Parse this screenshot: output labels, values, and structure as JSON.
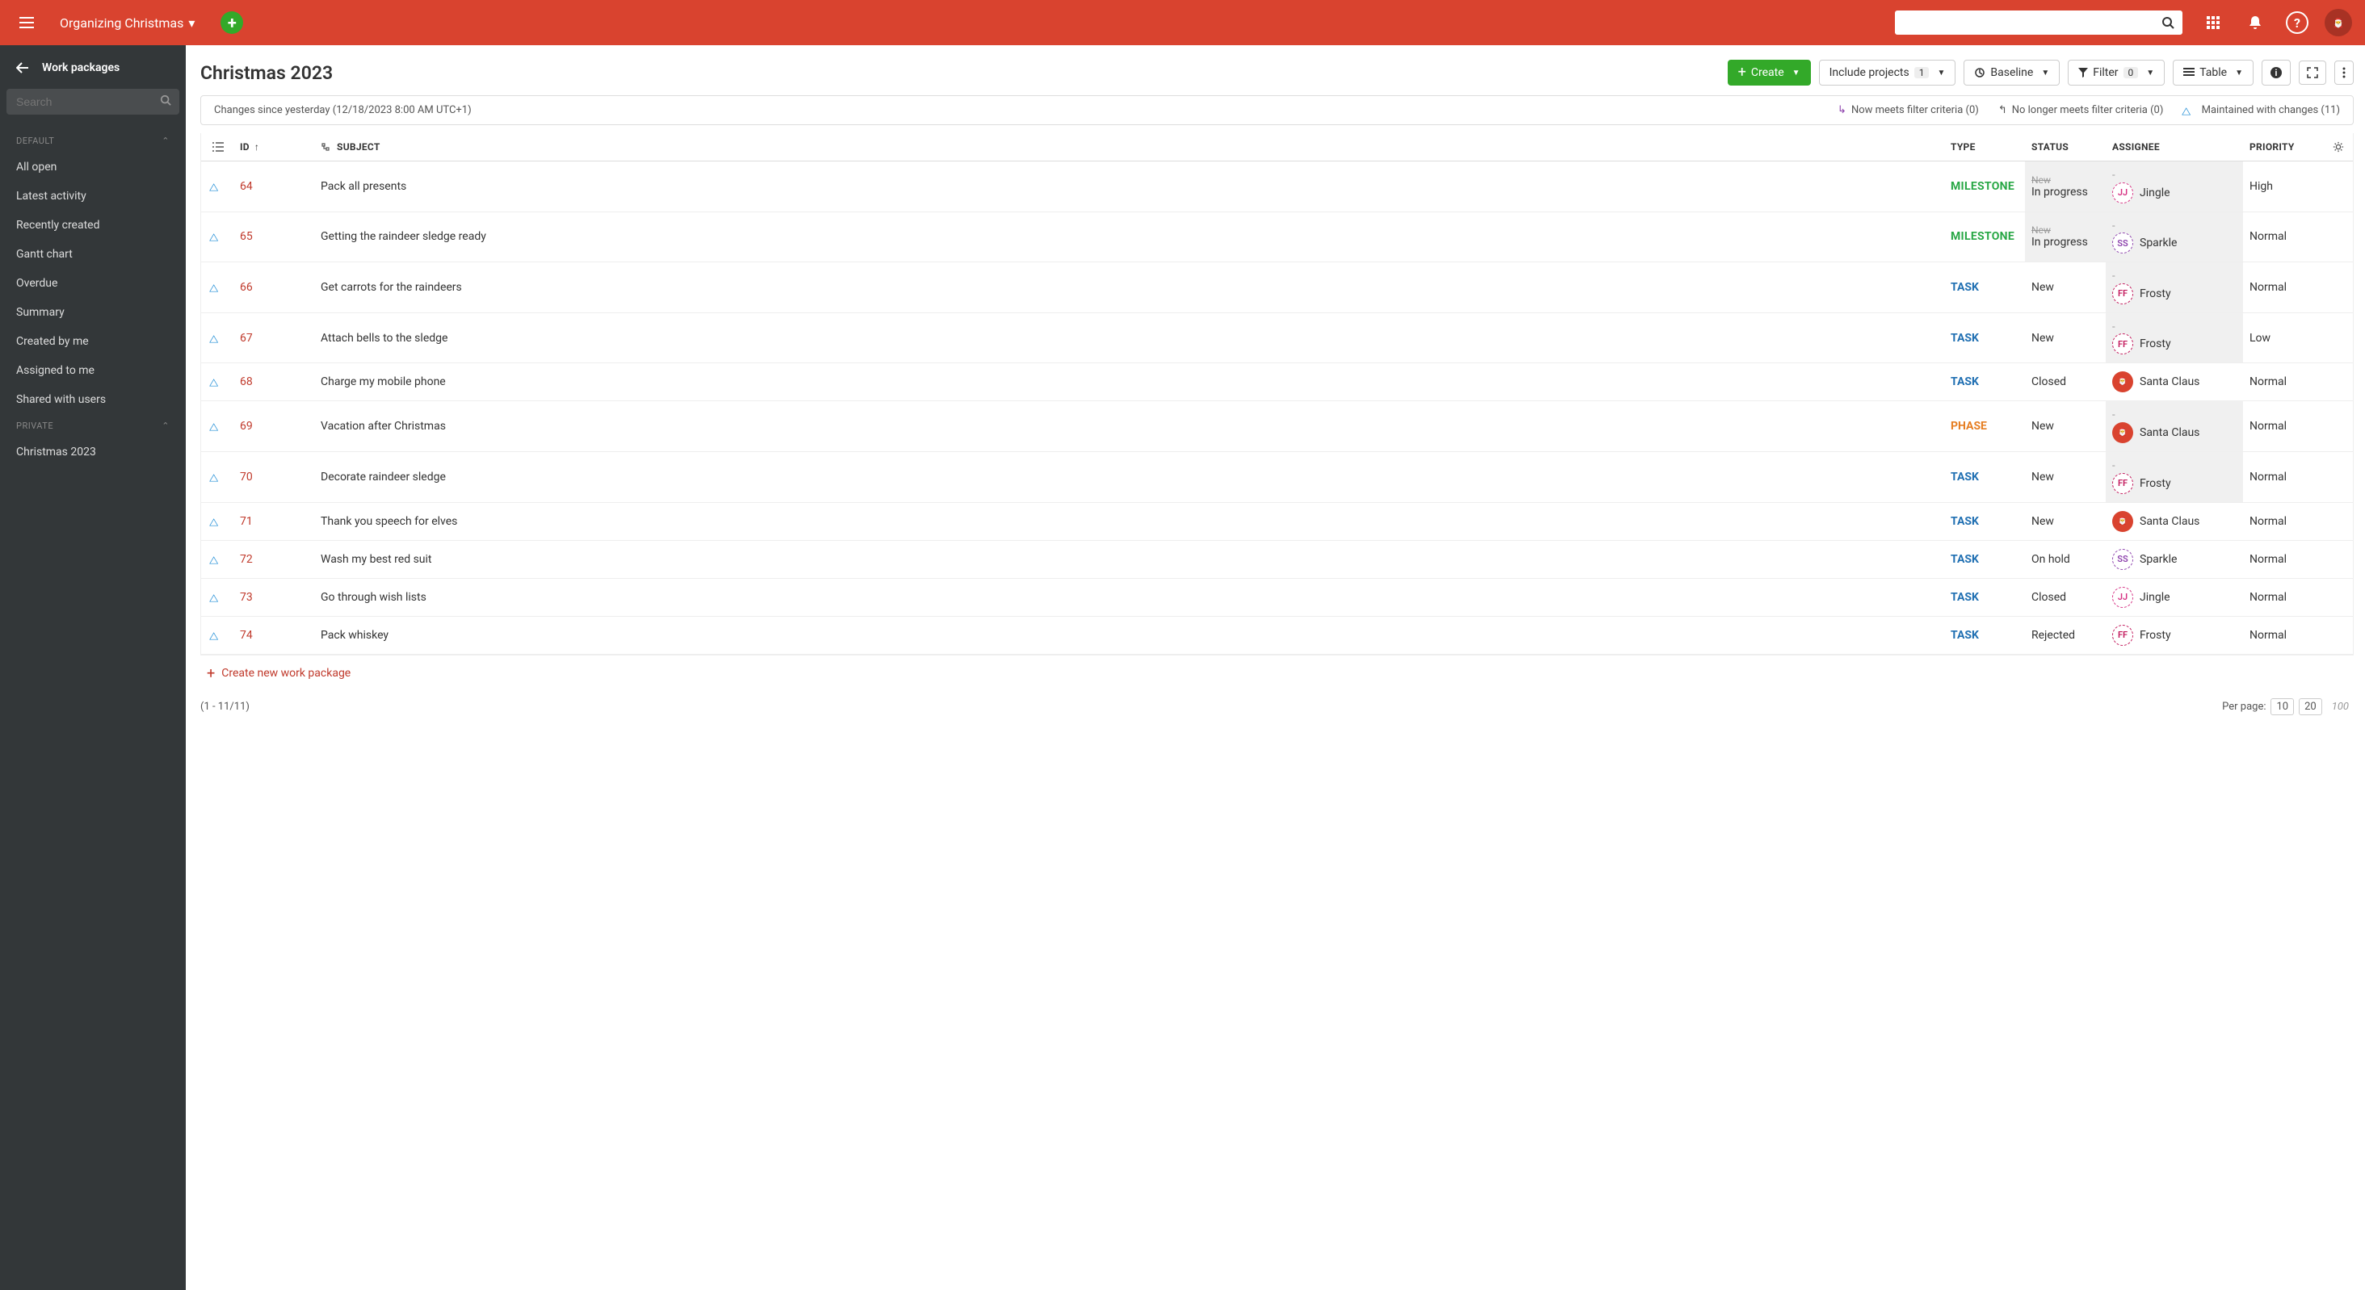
{
  "topbar": {
    "project_name": "Organizing Christmas",
    "search_placeholder": "",
    "avatar_initials": "🎅"
  },
  "sidebar": {
    "back_label": "Work packages",
    "search_placeholder": "Search",
    "groups": [
      {
        "label": "DEFAULT",
        "items": [
          "All open",
          "Latest activity",
          "Recently created",
          "Gantt chart",
          "Overdue",
          "Summary",
          "Created by me",
          "Assigned to me",
          "Shared with users"
        ]
      },
      {
        "label": "PRIVATE",
        "items": [
          "Christmas 2023"
        ]
      }
    ]
  },
  "toolbar": {
    "title": "Christmas 2023",
    "create_label": "Create",
    "include_projects_label": "Include projects",
    "include_projects_count": "1",
    "baseline_label": "Baseline",
    "filter_label": "Filter",
    "filter_count": "0",
    "table_label": "Table"
  },
  "changes_bar": {
    "since_label": "Changes since yesterday (12/18/2023 8:00 AM UTC+1)",
    "now_meets": "Now meets filter criteria (0)",
    "no_longer": "No longer meets filter criteria (0)",
    "maintained": "Maintained with changes (11)"
  },
  "columns": {
    "id": "ID",
    "subject": "SUBJECT",
    "type": "TYPE",
    "status": "STATUS",
    "assignee": "ASSIGNEE",
    "priority": "PRIORITY"
  },
  "rows": [
    {
      "id": "64",
      "subject": "Pack all presents",
      "type": "MILESTONE",
      "type_class": "type-milestone",
      "status_old": "New",
      "status": "In progress",
      "assignee_old": "-",
      "assignee": "Jingle",
      "av_class": "av-dashed av-jj",
      "av_txt": "JJ",
      "priority": "High",
      "hl_status": true,
      "hl_assignee": true
    },
    {
      "id": "65",
      "subject": "Getting the raindeer sledge ready",
      "type": "MILESTONE",
      "type_class": "type-milestone",
      "status_old": "New",
      "status": "In progress",
      "assignee_old": "-",
      "assignee": "Sparkle",
      "av_class": "av-dashed av-ss",
      "av_txt": "SS",
      "priority": "Normal",
      "hl_status": true,
      "hl_assignee": true
    },
    {
      "id": "66",
      "subject": "Get carrots for the raindeers",
      "type": "TASK",
      "type_class": "type-task",
      "status": "New",
      "assignee_old": "-",
      "assignee": "Frosty",
      "av_class": "av-dashed av-ff",
      "av_txt": "FF",
      "priority": "Normal",
      "hl_assignee": true
    },
    {
      "id": "67",
      "subject": "Attach bells to the sledge",
      "type": "TASK",
      "type_class": "type-task",
      "status": "New",
      "assignee_old": "-",
      "assignee": "Frosty",
      "av_class": "av-dashed av-ff",
      "av_txt": "FF",
      "priority": "Low",
      "hl_assignee": true
    },
    {
      "id": "68",
      "subject": "Charge my mobile phone",
      "type": "TASK",
      "type_class": "type-task",
      "status": "Closed",
      "assignee": "Santa Claus",
      "av_class": "av-santa",
      "av_txt": "🎅",
      "priority": "Normal"
    },
    {
      "id": "69",
      "subject": "Vacation after Christmas",
      "type": "PHASE",
      "type_class": "type-phase",
      "status": "New",
      "assignee_old": "-",
      "assignee": "Santa Claus",
      "av_class": "av-santa",
      "av_txt": "🎅",
      "priority": "Normal",
      "hl_assignee": true
    },
    {
      "id": "70",
      "subject": "Decorate raindeer sledge",
      "type": "TASK",
      "type_class": "type-task",
      "status": "New",
      "assignee_old": "-",
      "assignee": "Frosty",
      "av_class": "av-dashed av-ff",
      "av_txt": "FF",
      "priority": "Normal",
      "hl_assignee": true
    },
    {
      "id": "71",
      "subject": "Thank you speech for elves",
      "type": "TASK",
      "type_class": "type-task",
      "status": "New",
      "assignee": "Santa Claus",
      "av_class": "av-santa",
      "av_txt": "🎅",
      "priority": "Normal"
    },
    {
      "id": "72",
      "subject": "Wash my best red suit",
      "type": "TASK",
      "type_class": "type-task",
      "status": "On hold",
      "assignee": "Sparkle",
      "av_class": "av-dashed av-ss",
      "av_txt": "SS",
      "priority": "Normal"
    },
    {
      "id": "73",
      "subject": "Go through wish lists",
      "type": "TASK",
      "type_class": "type-task",
      "status": "Closed",
      "assignee": "Jingle",
      "av_class": "av-dashed av-jj",
      "av_txt": "JJ",
      "priority": "Normal"
    },
    {
      "id": "74",
      "subject": "Pack whiskey",
      "type": "TASK",
      "type_class": "type-task",
      "status": "Rejected",
      "assignee": "Frosty",
      "av_class": "av-dashed av-ff",
      "av_txt": "FF",
      "priority": "Normal"
    }
  ],
  "create_new_label": "Create new work package",
  "footer": {
    "range": "(1 - 11/11)",
    "per_page_label": "Per page:",
    "options": [
      "10",
      "20",
      "100"
    ]
  }
}
